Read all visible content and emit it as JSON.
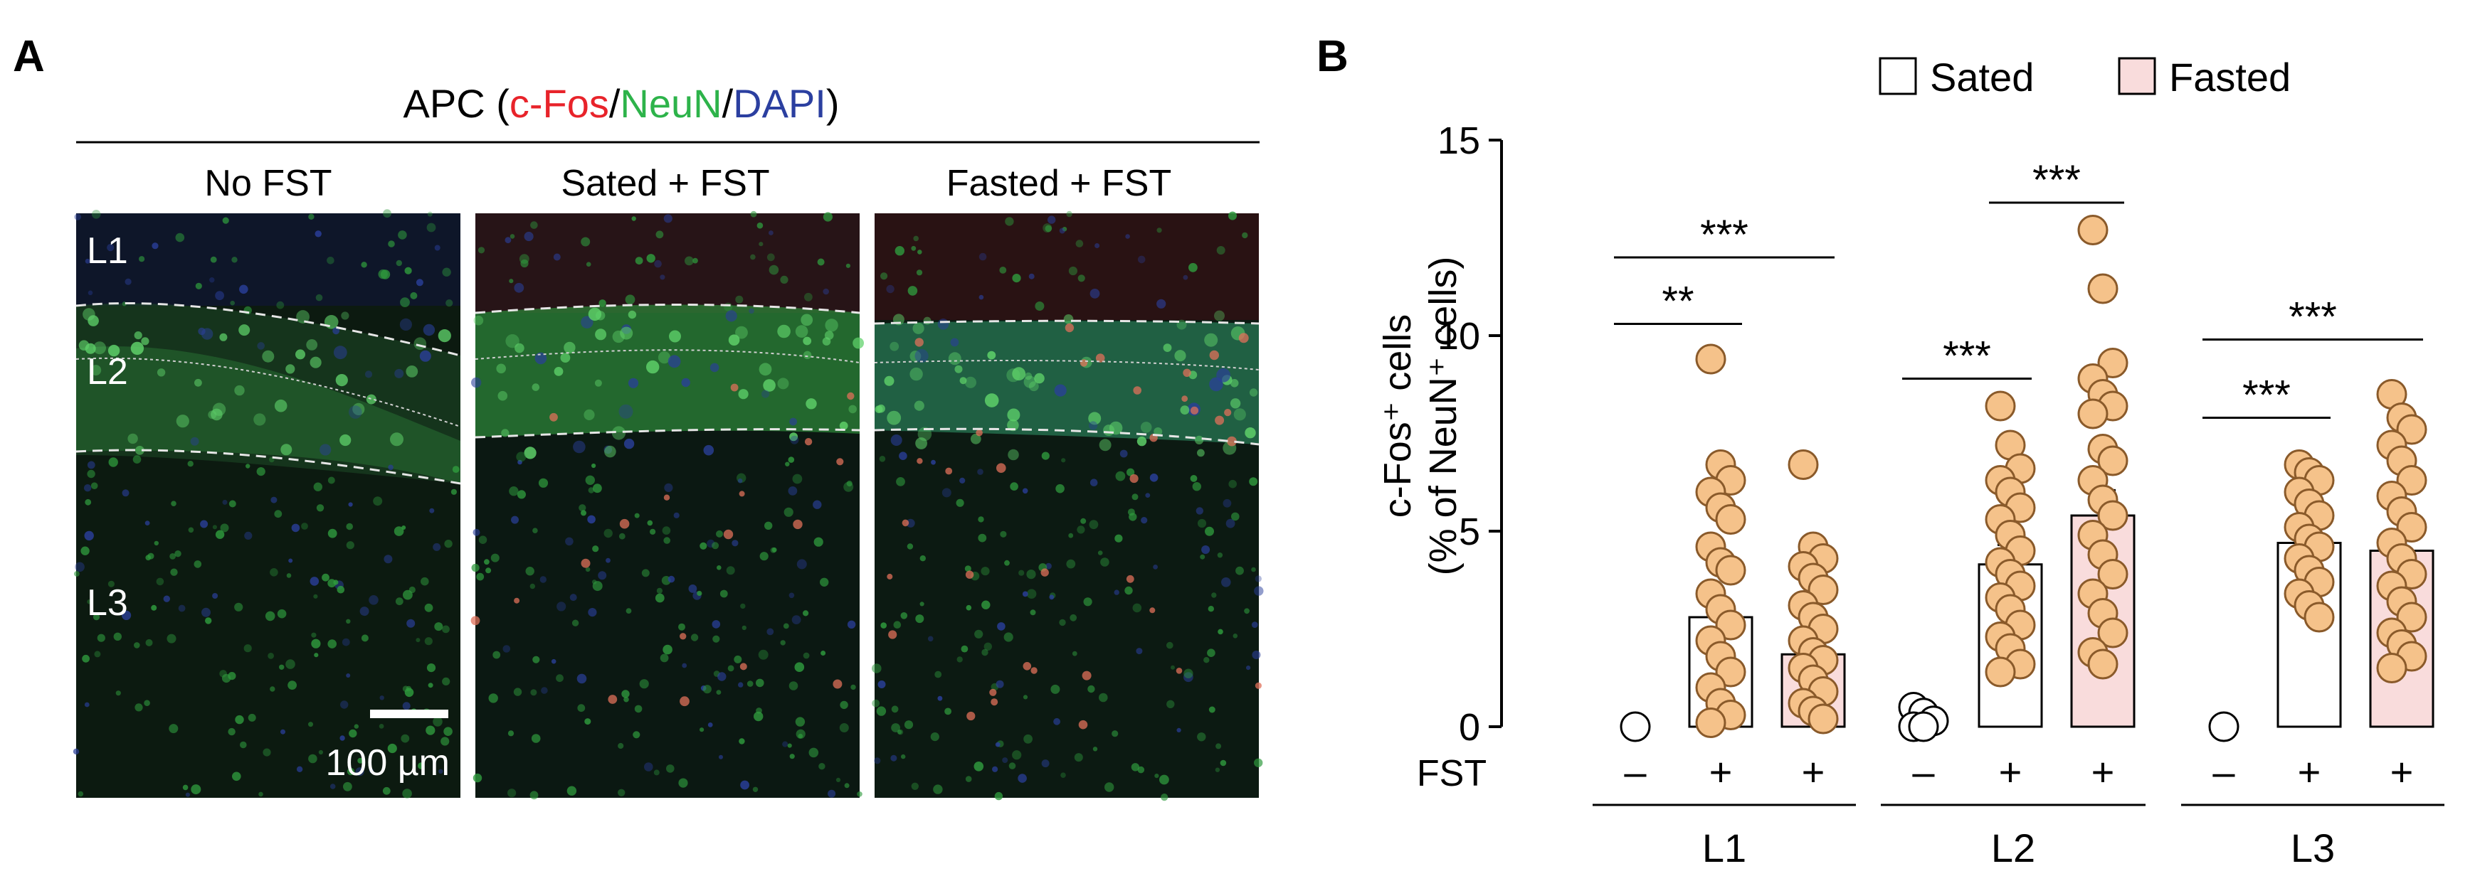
{
  "panel_a": {
    "letter": "A",
    "title": {
      "prefix": "APC (",
      "cfos": "c-Fos",
      "sep1": "/",
      "neun": "NeuN",
      "sep2": "/",
      "dapi": "DAPI",
      "suffix": ")"
    },
    "colors": {
      "cfos": "#e8232a",
      "neun": "#2db34a",
      "dapi": "#2b3fa0"
    },
    "images": [
      {
        "label": "No FST",
        "layer_labels": [
          "L1",
          "L2",
          "L3"
        ],
        "scale_bar": "100 µm",
        "tone": "no-fst"
      },
      {
        "label": "Sated + FST",
        "tone": "sated"
      },
      {
        "label": "Fasted + FST",
        "tone": "fasted"
      }
    ]
  },
  "panel_b": {
    "letter": "B",
    "legend": [
      {
        "label": "Sated",
        "color": "#ffffff"
      },
      {
        "label": "Fasted",
        "color": "#f9dcdc"
      }
    ]
  },
  "chart_data": {
    "type": "bar",
    "ylabel_line1": "c-Fos⁺ cells",
    "ylabel_line2": "(% of NeuN⁺ cells)",
    "ylim": [
      0,
      15
    ],
    "yticks": [
      "0",
      "5",
      "10",
      "15"
    ],
    "fst_row_label": "FST",
    "groups": [
      {
        "name": "L1",
        "conditions": [
          {
            "fst": "–",
            "mean": 0,
            "points": [
              0
            ]
          },
          {
            "fst": "+",
            "mean": 2.8,
            "series": "Sated",
            "points": [
              9.4,
              6.7,
              6.3,
              6.0,
              5.6,
              5.3,
              4.6,
              4.2,
              4.0,
              3.4,
              3.0,
              2.6,
              2.2,
              1.8,
              1.4,
              1.0,
              0.6,
              0.3,
              0.1
            ]
          },
          {
            "fst": "+",
            "mean": 1.85,
            "series": "Fasted",
            "points": [
              6.7,
              4.6,
              4.3,
              4.1,
              3.8,
              3.5,
              3.1,
              2.8,
              2.5,
              2.2,
              1.9,
              1.7,
              1.5,
              1.2,
              0.9,
              0.6,
              0.4,
              0.2
            ]
          }
        ],
        "significance": [
          {
            "from": 0,
            "to": 1,
            "label": "**",
            "y": 10.3
          },
          {
            "from": 0,
            "to": 2,
            "label": "***",
            "y": 12.0
          }
        ]
      },
      {
        "name": "L2",
        "conditions": [
          {
            "fst": "–",
            "mean": 0.1,
            "points": [
              0.5,
              0.35,
              0.15,
              0.0,
              0.0
            ]
          },
          {
            "fst": "+",
            "mean": 4.15,
            "series": "Sated",
            "points": [
              8.2,
              7.2,
              6.6,
              6.3,
              6.0,
              5.6,
              5.3,
              4.9,
              4.5,
              4.2,
              3.9,
              3.6,
              3.3,
              3.0,
              2.6,
              2.3,
              2.0,
              1.6,
              1.4
            ]
          },
          {
            "fst": "+",
            "mean": 5.4,
            "series": "Fasted",
            "points": [
              12.7,
              11.2,
              9.3,
              8.9,
              8.5,
              8.2,
              8.0,
              7.1,
              6.8,
              6.3,
              5.8,
              5.4,
              4.9,
              4.4,
              3.9,
              3.4,
              2.9,
              2.4,
              1.9,
              1.6
            ]
          }
        ],
        "significance": [
          {
            "from": 0,
            "to": 1,
            "label": "***",
            "y": 8.9
          },
          {
            "from": 1,
            "to": 2,
            "label": "***",
            "y": 13.4
          }
        ]
      },
      {
        "name": "L3",
        "conditions": [
          {
            "fst": "–",
            "mean": 0,
            "points": [
              0
            ]
          },
          {
            "fst": "+",
            "mean": 4.7,
            "series": "Sated",
            "points": [
              6.7,
              6.5,
              6.3,
              6.0,
              5.7,
              5.4,
              5.1,
              4.8,
              4.6,
              4.3,
              4.0,
              3.7,
              3.4,
              3.1,
              2.8
            ]
          },
          {
            "fst": "+",
            "mean": 4.5,
            "series": "Fasted",
            "points": [
              8.5,
              7.9,
              7.6,
              7.2,
              6.8,
              6.3,
              5.9,
              5.5,
              5.1,
              4.7,
              4.3,
              3.9,
              3.6,
              3.2,
              2.8,
              2.4,
              2.1,
              1.8,
              1.5
            ]
          }
        ],
        "significance": [
          {
            "from": 0,
            "to": 1,
            "label": "***",
            "y": 7.9
          },
          {
            "from": 0,
            "to": 2,
            "label": "***",
            "y": 9.9
          }
        ]
      }
    ],
    "point_color": "#f5c28a",
    "point_stroke": "#8a5a2a"
  }
}
